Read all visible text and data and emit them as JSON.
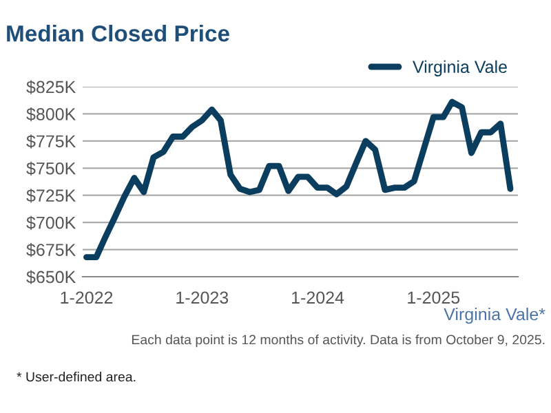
{
  "chart_data": {
    "type": "line",
    "title": "Median Closed Price",
    "x": [
      "2022-01",
      "2022-02",
      "2022-03",
      "2022-04",
      "2022-05",
      "2022-06",
      "2022-07",
      "2022-08",
      "2022-09",
      "2022-10",
      "2022-11",
      "2022-12",
      "2023-01",
      "2023-02",
      "2023-03",
      "2023-04",
      "2023-05",
      "2023-06",
      "2023-07",
      "2023-08",
      "2023-09",
      "2023-10",
      "2023-11",
      "2023-12",
      "2024-01",
      "2024-02",
      "2024-03",
      "2024-04",
      "2024-05",
      "2024-06",
      "2024-07",
      "2024-08",
      "2024-09",
      "2024-10",
      "2024-11",
      "2024-12",
      "2025-01",
      "2025-02",
      "2025-03",
      "2025-04",
      "2025-05",
      "2025-06",
      "2025-07",
      "2025-08",
      "2025-09"
    ],
    "series": [
      {
        "name": "Virginia Vale",
        "color": "#0b3d5e",
        "values": [
          668,
          668,
          686,
          705,
          724,
          741,
          728,
          760,
          765,
          779,
          779,
          788,
          794,
          804,
          794,
          744,
          731,
          728,
          730,
          752,
          752,
          729,
          742,
          742,
          732,
          732,
          726,
          733,
          754,
          775,
          767,
          730,
          732,
          732,
          738,
          767,
          797,
          797,
          811,
          806,
          764,
          783,
          783,
          791,
          731
        ]
      }
    ],
    "ylim": [
      650,
      825
    ],
    "yticks": [
      {
        "value": 650,
        "label": "$650K"
      },
      {
        "value": 675,
        "label": "$675K"
      },
      {
        "value": 700,
        "label": "$700K"
      },
      {
        "value": 725,
        "label": "$725K"
      },
      {
        "value": 750,
        "label": "$750K"
      },
      {
        "value": 775,
        "label": "$775K"
      },
      {
        "value": 800,
        "label": "$800K"
      },
      {
        "value": 825,
        "label": "$825K"
      }
    ],
    "xlim": [
      "2021-12-20",
      "2025-09-25"
    ],
    "xticks": [
      {
        "value": "2022-01",
        "label": "1-2022"
      },
      {
        "value": "2023-01",
        "label": "1-2023"
      },
      {
        "value": "2024-01",
        "label": "1-2024"
      },
      {
        "value": "2025-01",
        "label": "1-2025"
      }
    ],
    "grid": "y",
    "legend": "top right",
    "line_style": "solid",
    "marker": "none",
    "annotations": [
      "Virginia Vale*",
      "Each data point is 12 months of activity. Data is from October 9, 2025.",
      "* User-defined area."
    ]
  }
}
